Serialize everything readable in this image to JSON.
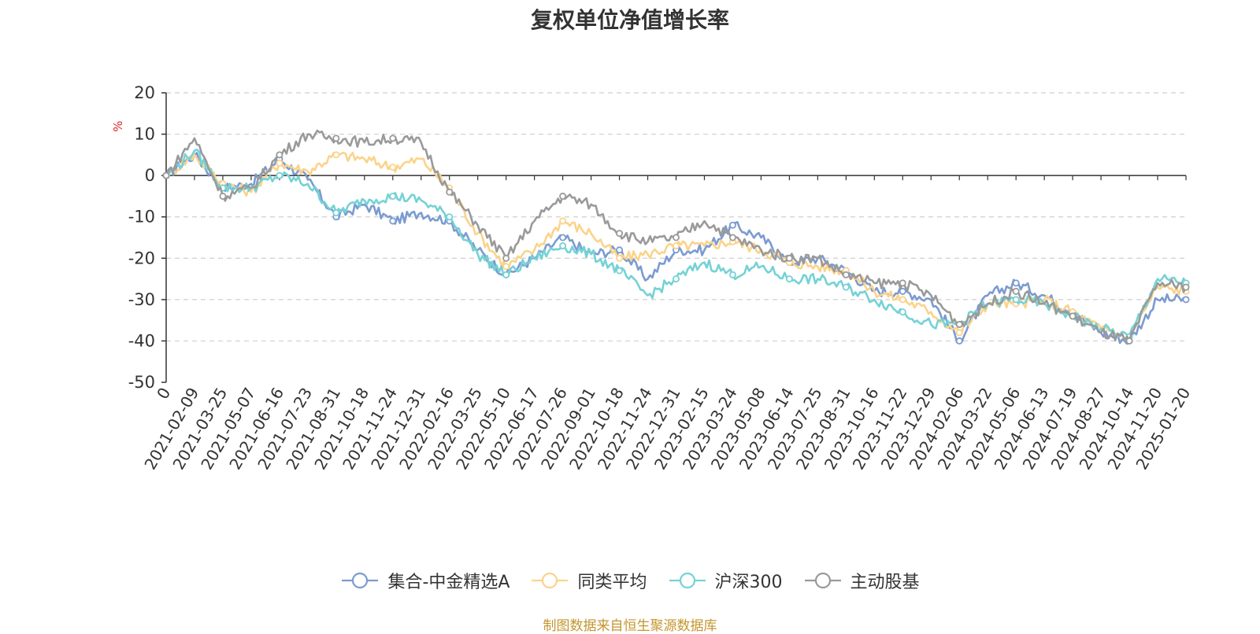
{
  "chart_data": {
    "type": "line",
    "title": "复权单位净值增长率",
    "ylabel": "%",
    "ylim": [
      -50,
      20
    ],
    "yticks": [
      20,
      10,
      0,
      -10,
      -20,
      -30,
      -40,
      -50
    ],
    "grid": true,
    "legend_position": "bottom",
    "categories": [
      "0",
      "2021-02-09",
      "2021-03-25",
      "2021-05-07",
      "2021-06-16",
      "2021-07-23",
      "2021-08-31",
      "2021-10-18",
      "2021-11-24",
      "2021-12-31",
      "2022-02-16",
      "2022-03-25",
      "2022-05-10",
      "2022-06-17",
      "2022-07-26",
      "2022-09-01",
      "2022-10-18",
      "2022-11-24",
      "2022-12-31",
      "2023-02-15",
      "2023-03-24",
      "2023-05-08",
      "2023-06-14",
      "2023-07-25",
      "2023-08-31",
      "2023-10-16",
      "2023-11-22",
      "2023-12-29",
      "2024-02-06",
      "2024-03-22",
      "2024-05-06",
      "2024-06-13",
      "2024-07-19",
      "2024-08-27",
      "2024-10-14",
      "2024-11-20",
      "2025-01-20"
    ],
    "series": [
      {
        "name": "集合-中金精选A",
        "color": "#7b9bd1",
        "values": [
          0,
          5,
          -3,
          -2,
          4,
          -1,
          -10,
          -7,
          -11,
          -9,
          -11,
          -18,
          -24,
          -20,
          -15,
          -19,
          -18,
          -25,
          -18,
          -18,
          -12,
          -15,
          -21,
          -20,
          -23,
          -28,
          -28,
          -30,
          -40,
          -29,
          -26,
          -29,
          -33,
          -38,
          -40,
          -30,
          -30
        ]
      },
      {
        "name": "同类平均",
        "color": "#fbd38a",
        "values": [
          0,
          5,
          -2,
          -4,
          3,
          1,
          5,
          4,
          2,
          4,
          -3,
          -14,
          -22,
          -18,
          -11,
          -14,
          -20,
          -19,
          -17,
          -17,
          -16,
          -18,
          -21,
          -22,
          -23,
          -28,
          -30,
          -33,
          -38,
          -31,
          -31,
          -30,
          -33,
          -37,
          -39,
          -27,
          -28
        ]
      },
      {
        "name": "沪深300",
        "color": "#75d2d5",
        "values": [
          0,
          6,
          -3,
          -3,
          0,
          -2,
          -9,
          -6,
          -5,
          -6,
          -10,
          -19,
          -24,
          -20,
          -17,
          -19,
          -23,
          -29,
          -25,
          -21,
          -24,
          -22,
          -25,
          -25,
          -27,
          -30,
          -33,
          -36,
          -36,
          -31,
          -30,
          -31,
          -34,
          -37,
          -39,
          -25,
          -26
        ]
      },
      {
        "name": "主动股基",
        "color": "#9a9a9a",
        "values": [
          0,
          9,
          -5,
          -3,
          5,
          10,
          9,
          8,
          9,
          8,
          -4,
          -12,
          -20,
          -11,
          -5,
          -7,
          -14,
          -16,
          -15,
          -11,
          -15,
          -18,
          -20,
          -20,
          -24,
          -26,
          -26,
          -29,
          -36,
          -31,
          -28,
          -31,
          -34,
          -38,
          -40,
          -26,
          -27
        ]
      }
    ]
  },
  "footer": {
    "source": "制图数据来自恒生聚源数据库"
  }
}
